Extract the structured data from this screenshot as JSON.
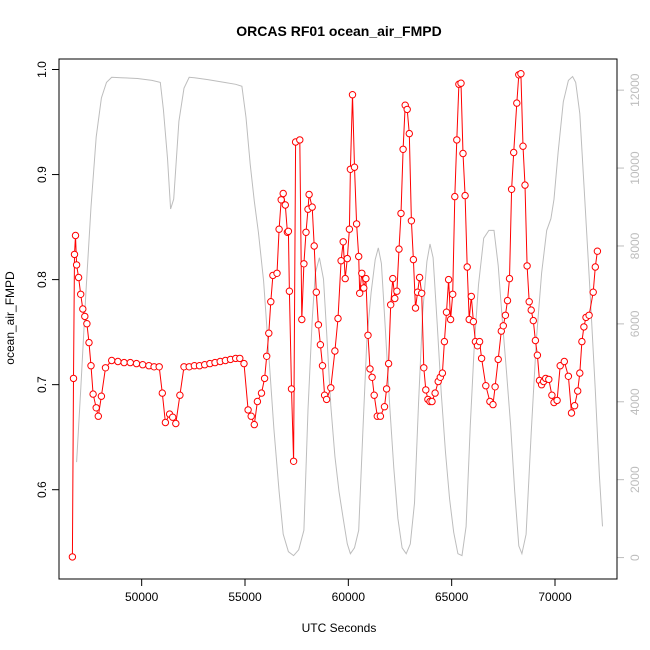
{
  "chart_data": {
    "type": "line",
    "title": "ORCAS RF01 ocean_air_FMPD",
    "xlabel": "UTC Seconds",
    "ylabel": "ocean_air_FMPD",
    "xlim": [
      46000,
      73000
    ],
    "ylim": [
      0.515,
      1.01
    ],
    "y2lim": [
      -550,
      12800
    ],
    "x_ticks": [
      50000,
      55000,
      60000,
      65000,
      70000
    ],
    "y_ticks": [
      0.6,
      0.7,
      0.8,
      0.9,
      1.0
    ],
    "y2_ticks": [
      0,
      2000,
      4000,
      6000,
      8000,
      10000,
      12000
    ],
    "grid": false,
    "series": [
      {
        "color": "#ff0000",
        "axis": "left",
        "style": "line-with-open-circles",
        "points": [
          [
            46650,
            0.536
          ],
          [
            46700,
            0.706
          ],
          [
            46750,
            0.824
          ],
          [
            46800,
            0.842
          ],
          [
            46850,
            0.814
          ],
          [
            46950,
            0.802
          ],
          [
            47050,
            0.786
          ],
          [
            47150,
            0.772
          ],
          [
            47250,
            0.765
          ],
          [
            47350,
            0.758
          ],
          [
            47450,
            0.74
          ],
          [
            47550,
            0.718
          ],
          [
            47650,
            0.691
          ],
          [
            47800,
            0.678
          ],
          [
            47900,
            0.67
          ],
          [
            48050,
            0.689
          ],
          [
            48250,
            0.716
          ],
          [
            48550,
            0.723
          ],
          [
            48850,
            0.722
          ],
          [
            49150,
            0.721
          ],
          [
            49450,
            0.721
          ],
          [
            49750,
            0.72
          ],
          [
            50050,
            0.719
          ],
          [
            50350,
            0.718
          ],
          [
            50600,
            0.717
          ],
          [
            50850,
            0.717
          ],
          [
            51000,
            0.692
          ],
          [
            51150,
            0.664
          ],
          [
            51350,
            0.672
          ],
          [
            51500,
            0.669
          ],
          [
            51650,
            0.663
          ],
          [
            51850,
            0.69
          ],
          [
            52050,
            0.717
          ],
          [
            52300,
            0.717
          ],
          [
            52550,
            0.718
          ],
          [
            52800,
            0.718
          ],
          [
            53050,
            0.719
          ],
          [
            53300,
            0.72
          ],
          [
            53550,
            0.721
          ],
          [
            53800,
            0.722
          ],
          [
            54050,
            0.723
          ],
          [
            54300,
            0.724
          ],
          [
            54550,
            0.725
          ],
          [
            54750,
            0.725
          ],
          [
            54950,
            0.72
          ],
          [
            55150,
            0.676
          ],
          [
            55300,
            0.67
          ],
          [
            55450,
            0.662
          ],
          [
            55600,
            0.684
          ],
          [
            55800,
            0.692
          ],
          [
            55950,
            0.706
          ],
          [
            56050,
            0.727
          ],
          [
            56150,
            0.749
          ],
          [
            56250,
            0.779
          ],
          [
            56350,
            0.804
          ],
          [
            56550,
            0.806
          ],
          [
            56650,
            0.848
          ],
          [
            56750,
            0.876
          ],
          [
            56850,
            0.882
          ],
          [
            56950,
            0.871
          ],
          [
            57050,
            0.845
          ],
          [
            57100,
            0.846
          ],
          [
            57150,
            0.789
          ],
          [
            57250,
            0.696
          ],
          [
            57350,
            0.627
          ],
          [
            57450,
            0.931
          ],
          [
            57650,
            0.933
          ],
          [
            57750,
            0.762
          ],
          [
            57850,
            0.815
          ],
          [
            57950,
            0.845
          ],
          [
            58050,
            0.867
          ],
          [
            58100,
            0.881
          ],
          [
            58250,
            0.869
          ],
          [
            58350,
            0.832
          ],
          [
            58450,
            0.788
          ],
          [
            58550,
            0.757
          ],
          [
            58650,
            0.738
          ],
          [
            58750,
            0.718
          ],
          [
            58850,
            0.69
          ],
          [
            58950,
            0.686
          ],
          [
            59150,
            0.697
          ],
          [
            59350,
            0.732
          ],
          [
            59500,
            0.763
          ],
          [
            59650,
            0.818
          ],
          [
            59750,
            0.836
          ],
          [
            59850,
            0.801
          ],
          [
            59950,
            0.82
          ],
          [
            60050,
            0.848
          ],
          [
            60100,
            0.905
          ],
          [
            60200,
            0.976
          ],
          [
            60300,
            0.907
          ],
          [
            60400,
            0.853
          ],
          [
            60500,
            0.822
          ],
          [
            60550,
            0.787
          ],
          [
            60650,
            0.806
          ],
          [
            60750,
            0.792
          ],
          [
            60850,
            0.801
          ],
          [
            60950,
            0.747
          ],
          [
            61050,
            0.715
          ],
          [
            61150,
            0.707
          ],
          [
            61250,
            0.69
          ],
          [
            61400,
            0.67
          ],
          [
            61550,
            0.67
          ],
          [
            61750,
            0.679
          ],
          [
            61850,
            0.696
          ],
          [
            61950,
            0.72
          ],
          [
            62050,
            0.776
          ],
          [
            62150,
            0.801
          ],
          [
            62250,
            0.782
          ],
          [
            62350,
            0.789
          ],
          [
            62450,
            0.829
          ],
          [
            62550,
            0.863
          ],
          [
            62650,
            0.924
          ],
          [
            62750,
            0.966
          ],
          [
            62850,
            0.962
          ],
          [
            62950,
            0.939
          ],
          [
            63050,
            0.856
          ],
          [
            63150,
            0.819
          ],
          [
            63250,
            0.773
          ],
          [
            63350,
            0.788
          ],
          [
            63450,
            0.802
          ],
          [
            63550,
            0.787
          ],
          [
            63650,
            0.716
          ],
          [
            63750,
            0.695
          ],
          [
            63850,
            0.686
          ],
          [
            63950,
            0.684
          ],
          [
            64050,
            0.684
          ],
          [
            64200,
            0.692
          ],
          [
            64350,
            0.703
          ],
          [
            64450,
            0.707
          ],
          [
            64550,
            0.711
          ],
          [
            64650,
            0.741
          ],
          [
            64750,
            0.769
          ],
          [
            64850,
            0.8
          ],
          [
            64950,
            0.762
          ],
          [
            65050,
            0.786
          ],
          [
            65150,
            0.879
          ],
          [
            65250,
            0.933
          ],
          [
            65350,
            0.986
          ],
          [
            65450,
            0.987
          ],
          [
            65550,
            0.92
          ],
          [
            65650,
            0.88
          ],
          [
            65750,
            0.812
          ],
          [
            65850,
            0.762
          ],
          [
            65950,
            0.784
          ],
          [
            66050,
            0.76
          ],
          [
            66150,
            0.741
          ],
          [
            66250,
            0.737
          ],
          [
            66350,
            0.741
          ],
          [
            66450,
            0.725
          ],
          [
            66650,
            0.699
          ],
          [
            66850,
            0.684
          ],
          [
            67000,
            0.681
          ],
          [
            67100,
            0.698
          ],
          [
            67250,
            0.724
          ],
          [
            67400,
            0.751
          ],
          [
            67500,
            0.756
          ],
          [
            67600,
            0.766
          ],
          [
            67700,
            0.78
          ],
          [
            67800,
            0.801
          ],
          [
            67900,
            0.886
          ],
          [
            68000,
            0.921
          ],
          [
            68150,
            0.968
          ],
          [
            68250,
            0.995
          ],
          [
            68350,
            0.996
          ],
          [
            68450,
            0.927
          ],
          [
            68550,
            0.89
          ],
          [
            68650,
            0.813
          ],
          [
            68750,
            0.779
          ],
          [
            68850,
            0.771
          ],
          [
            68950,
            0.761
          ],
          [
            69050,
            0.742
          ],
          [
            69150,
            0.728
          ],
          [
            69250,
            0.704
          ],
          [
            69350,
            0.7
          ],
          [
            69450,
            0.703
          ],
          [
            69550,
            0.706
          ],
          [
            69700,
            0.705
          ],
          [
            69850,
            0.69
          ],
          [
            69950,
            0.683
          ],
          [
            70100,
            0.685
          ],
          [
            70250,
            0.718
          ],
          [
            70450,
            0.722
          ],
          [
            70650,
            0.708
          ],
          [
            70800,
            0.673
          ],
          [
            70950,
            0.68
          ],
          [
            71100,
            0.694
          ],
          [
            71200,
            0.711
          ],
          [
            71300,
            0.741
          ],
          [
            71400,
            0.755
          ],
          [
            71500,
            0.764
          ],
          [
            71650,
            0.766
          ],
          [
            71850,
            0.788
          ],
          [
            71950,
            0.812
          ],
          [
            72050,
            0.827
          ]
        ]
      },
      {
        "color": "#bdbdbd",
        "axis": "right",
        "style": "line",
        "points": [
          [
            46850,
            2450
          ],
          [
            47050,
            4300
          ],
          [
            47300,
            6800
          ],
          [
            47550,
            9000
          ],
          [
            47800,
            10800
          ],
          [
            48050,
            11800
          ],
          [
            48300,
            12200
          ],
          [
            48550,
            12330
          ],
          [
            49000,
            12320
          ],
          [
            49800,
            12300
          ],
          [
            50500,
            12250
          ],
          [
            50900,
            12200
          ],
          [
            51050,
            11500
          ],
          [
            51250,
            10250
          ],
          [
            51400,
            8950
          ],
          [
            51550,
            9200
          ],
          [
            51800,
            11200
          ],
          [
            52050,
            12050
          ],
          [
            52300,
            12330
          ],
          [
            52550,
            12320
          ],
          [
            53200,
            12270
          ],
          [
            54000,
            12200
          ],
          [
            54550,
            12150
          ],
          [
            54850,
            12100
          ],
          [
            55050,
            11300
          ],
          [
            55250,
            10100
          ],
          [
            55450,
            9150
          ],
          [
            55650,
            8350
          ],
          [
            55900,
            7100
          ],
          [
            56150,
            5200
          ],
          [
            56400,
            3300
          ],
          [
            56650,
            1700
          ],
          [
            56850,
            600
          ],
          [
            57100,
            150
          ],
          [
            57350,
            50
          ],
          [
            57600,
            200
          ],
          [
            57850,
            700
          ],
          [
            58050,
            3800
          ],
          [
            58250,
            6100
          ],
          [
            58400,
            7300
          ],
          [
            58600,
            7700
          ],
          [
            58800,
            7150
          ],
          [
            58950,
            5800
          ],
          [
            59150,
            3900
          ],
          [
            59350,
            2600
          ],
          [
            59550,
            1700
          ],
          [
            59750,
            1000
          ],
          [
            59950,
            350
          ],
          [
            60100,
            100
          ],
          [
            60300,
            250
          ],
          [
            60500,
            700
          ],
          [
            60700,
            3200
          ],
          [
            60900,
            5600
          ],
          [
            61100,
            6800
          ],
          [
            61300,
            7650
          ],
          [
            61450,
            7950
          ],
          [
            61600,
            7550
          ],
          [
            61800,
            5800
          ],
          [
            62000,
            3900
          ],
          [
            62200,
            2300
          ],
          [
            62400,
            1000
          ],
          [
            62600,
            250
          ],
          [
            62800,
            100
          ],
          [
            63000,
            350
          ],
          [
            63200,
            1400
          ],
          [
            63400,
            4000
          ],
          [
            63600,
            6300
          ],
          [
            63800,
            7600
          ],
          [
            63950,
            8050
          ],
          [
            64100,
            7700
          ],
          [
            64300,
            6000
          ],
          [
            64500,
            4200
          ],
          [
            64700,
            2700
          ],
          [
            64900,
            1500
          ],
          [
            65100,
            650
          ],
          [
            65300,
            100
          ],
          [
            65500,
            50
          ],
          [
            65700,
            800
          ],
          [
            65900,
            3400
          ],
          [
            66100,
            5500
          ],
          [
            66300,
            7000
          ],
          [
            66550,
            8200
          ],
          [
            66800,
            8400
          ],
          [
            67050,
            8400
          ],
          [
            67250,
            7500
          ],
          [
            67450,
            6100
          ],
          [
            67650,
            4800
          ],
          [
            67850,
            3400
          ],
          [
            68050,
            1700
          ],
          [
            68250,
            300
          ],
          [
            68400,
            100
          ],
          [
            68600,
            600
          ],
          [
            68850,
            3200
          ],
          [
            69100,
            5600
          ],
          [
            69350,
            7300
          ],
          [
            69600,
            8400
          ],
          [
            69800,
            8700
          ],
          [
            69950,
            9200
          ],
          [
            70150,
            10400
          ],
          [
            70400,
            11700
          ],
          [
            70650,
            12250
          ],
          [
            70850,
            12350
          ],
          [
            71000,
            12200
          ],
          [
            71200,
            11400
          ],
          [
            71450,
            9100
          ],
          [
            71700,
            6800
          ],
          [
            71950,
            4300
          ],
          [
            72150,
            2100
          ],
          [
            72300,
            800
          ]
        ]
      }
    ]
  }
}
